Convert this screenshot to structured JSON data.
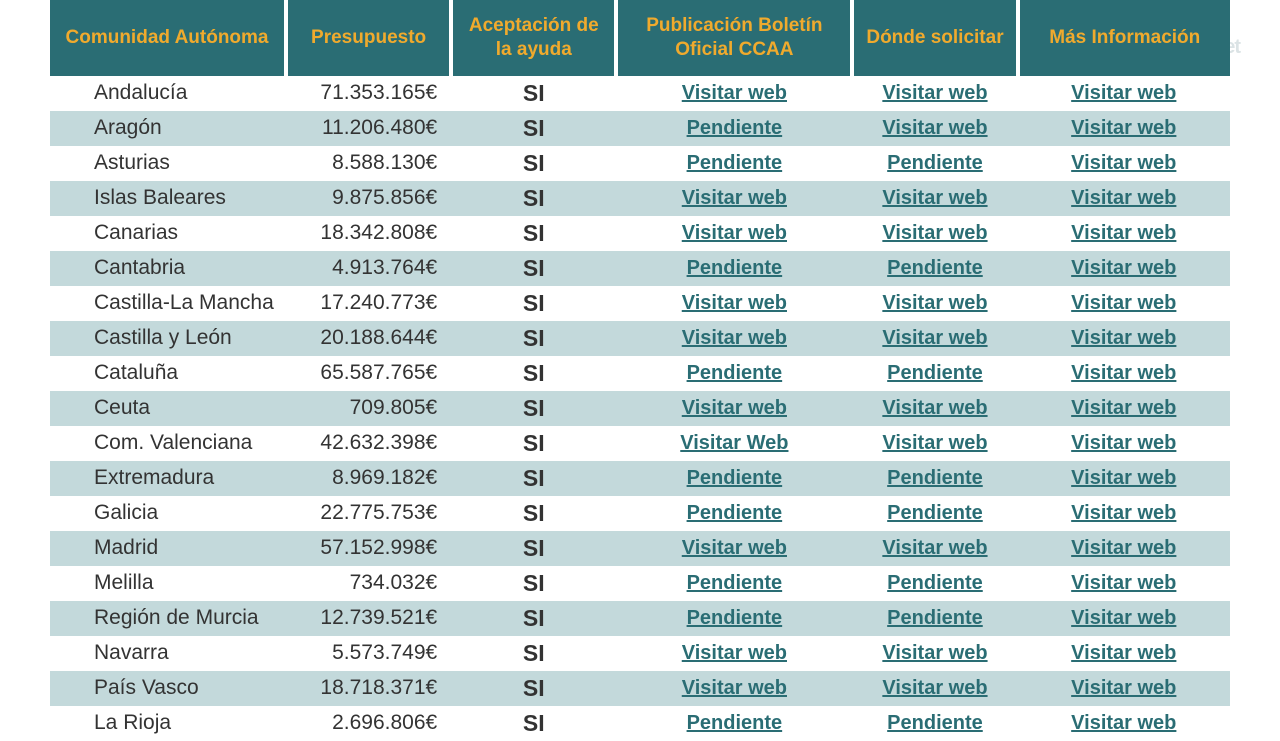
{
  "watermark": "coches.net",
  "columns": [
    "Comunidad Autónoma",
    "Presupuesto",
    "Aceptación de la ayuda",
    "Publicación Boletín Oficial CCAA",
    "Dónde solicitar",
    "Más Información"
  ],
  "link_text": "Visitar web",
  "pending_text": "Pendiente",
  "header_bg": "#2a6d74",
  "header_fg": "#f0aa2d",
  "row_even_bg": "#ffffff",
  "row_odd_bg": "#c3d9db",
  "link_color": "#2a6d74",
  "text_color": "#333333",
  "header_fontsize": 19,
  "body_fontsize": 21,
  "si_fontsize": 23,
  "rows": [
    {
      "comunidad": "Andalucía",
      "presupuesto": "71.353.165€",
      "aceptacion": "SI",
      "boletin": "link",
      "donde": "link",
      "mas": "link"
    },
    {
      "comunidad": "Aragón",
      "presupuesto": "11.206.480€",
      "aceptacion": "SI",
      "boletin": "pending",
      "donde": "link",
      "mas": "link"
    },
    {
      "comunidad": "Asturias",
      "presupuesto": "8.588.130€",
      "aceptacion": "SI",
      "boletin": "pending",
      "donde": "pending",
      "mas": "link"
    },
    {
      "comunidad": "Islas Baleares",
      "presupuesto": "9.875.856€",
      "aceptacion": "SI",
      "boletin": "link",
      "donde": "link",
      "mas": "link"
    },
    {
      "comunidad": "Canarias",
      "presupuesto": "18.342.808€",
      "aceptacion": "SI",
      "boletin": "link",
      "donde": "link",
      "mas": "link"
    },
    {
      "comunidad": "Cantabria",
      "presupuesto": "4.913.764€",
      "aceptacion": "SI",
      "boletin": "pending",
      "donde": "pending",
      "mas": "link"
    },
    {
      "comunidad": "Castilla-La Mancha",
      "presupuesto": "17.240.773€",
      "aceptacion": "SI",
      "boletin": "link",
      "donde": "link",
      "mas": "link"
    },
    {
      "comunidad": "Castilla y León",
      "presupuesto": "20.188.644€",
      "aceptacion": "SI",
      "boletin": "link",
      "donde": "link",
      "mas": "link"
    },
    {
      "comunidad": "Cataluña",
      "presupuesto": "65.587.765€",
      "aceptacion": "SI",
      "boletin": "pending",
      "donde": "pending",
      "mas": "link"
    },
    {
      "comunidad": "Ceuta",
      "presupuesto": "709.805€",
      "aceptacion": "SI",
      "boletin": "link",
      "donde": "link",
      "mas": "link"
    },
    {
      "comunidad": "Com. Valenciana",
      "presupuesto": "42.632.398€",
      "aceptacion": "SI",
      "boletin": "Visitar Web",
      "donde": "link",
      "mas": "link"
    },
    {
      "comunidad": "Extremadura",
      "presupuesto": "8.969.182€",
      "aceptacion": "SI",
      "boletin": "pending",
      "donde": "pending",
      "mas": "link"
    },
    {
      "comunidad": "Galicia",
      "presupuesto": "22.775.753€",
      "aceptacion": "SI",
      "boletin": "pending",
      "donde": "pending",
      "mas": "link"
    },
    {
      "comunidad": "Madrid",
      "presupuesto": "57.152.998€",
      "aceptacion": "SI",
      "boletin": "link",
      "donde": "link",
      "mas": "link"
    },
    {
      "comunidad": "Melilla",
      "presupuesto": "734.032€",
      "aceptacion": "SI",
      "boletin": "pending",
      "donde": "pending",
      "mas": "link"
    },
    {
      "comunidad": "Región de Murcia",
      "presupuesto": "12.739.521€",
      "aceptacion": "SI",
      "boletin": "pending",
      "donde": "pending",
      "mas": "link"
    },
    {
      "comunidad": "Navarra",
      "presupuesto": "5.573.749€",
      "aceptacion": "SI",
      "boletin": "link",
      "donde": "link",
      "mas": "link"
    },
    {
      "comunidad": "País Vasco",
      "presupuesto": "18.718.371€",
      "aceptacion": "SI",
      "boletin": "link",
      "donde": "link",
      "mas": "link"
    },
    {
      "comunidad": "La Rioja",
      "presupuesto": "2.696.806€",
      "aceptacion": "SI",
      "boletin": "pending",
      "donde": "pending",
      "mas": "link"
    }
  ]
}
